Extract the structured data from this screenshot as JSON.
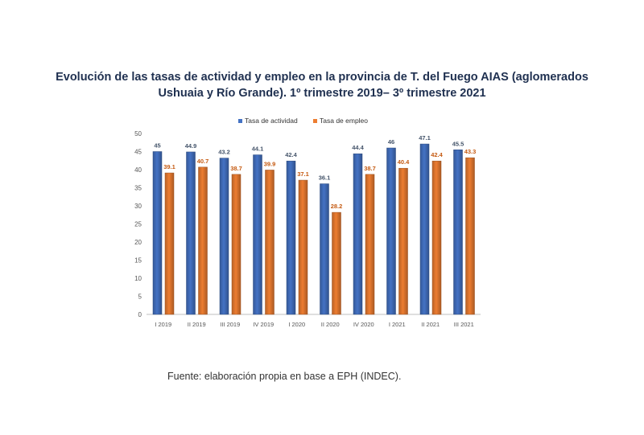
{
  "title_line1": "Evolución de las tasas de actividad y empleo en la provincia de T. del Fuego AIAS (aglomerados",
  "title_line2": "Ushuaia y Río Grande). 1º trimestre 2019– 3º trimestre 2021",
  "source": "Fuente: elaboración propia en base a EPH (INDEC).",
  "chart_data": {
    "type": "bar",
    "categories": [
      "I 2019",
      "II 2019",
      "III 2019",
      "IV 2019",
      "I 2020",
      "II 2020",
      "IV 2020",
      "I 2021",
      "II 2021",
      "III 2021"
    ],
    "series": [
      {
        "name": "Tasa de actividad",
        "color": "#4472c4",
        "values": [
          45,
          44.9,
          43.2,
          44.1,
          42.4,
          36.1,
          44.4,
          46,
          47.1,
          45.5
        ],
        "labels": [
          "45",
          "44.9",
          "43.2",
          "44.1",
          "42.4",
          "36.1",
          "44.4",
          "46",
          "47.1",
          "45.5"
        ]
      },
      {
        "name": "Tasa de empleo",
        "color": "#ed7d31",
        "values": [
          39.1,
          40.7,
          38.7,
          39.9,
          37.1,
          28.2,
          38.7,
          40.4,
          42.4,
          43.3
        ],
        "labels": [
          "39.1",
          "40.7",
          "38.7",
          "39.9",
          "37.1",
          "28.2",
          "38.7",
          "40.4",
          "42.4",
          "43.3"
        ]
      }
    ],
    "ylim": [
      0,
      50
    ],
    "yticks": [
      "0",
      "5",
      "10",
      "15",
      "20",
      "25",
      "30",
      "35",
      "40",
      "45",
      "50"
    ],
    "legend": "top-center",
    "grid": false
  }
}
